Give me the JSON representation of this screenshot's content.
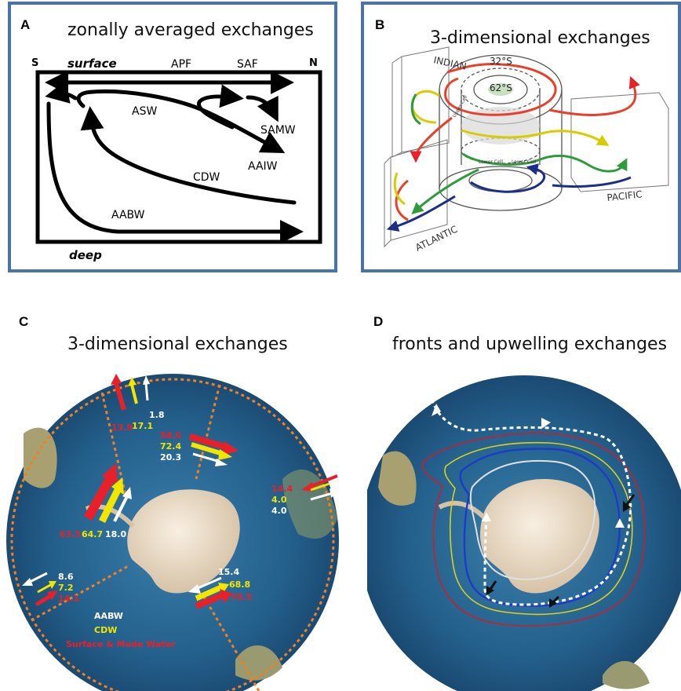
{
  "panel_a": {
    "label": "A",
    "title": "zonally averaged exchanges",
    "south": "S",
    "north": "N",
    "surface": "surface",
    "deep": "deep",
    "apf": "APF",
    "saf": "SAF",
    "asw": "ASW",
    "samw": "SAMW",
    "aaiw": "AAIW",
    "cdw": "CDW",
    "aabw": "AABW"
  },
  "panel_b": {
    "label": "B",
    "title": "3-dimensional exchanges",
    "indian": "INDIAN",
    "pacific": "PACIFIC",
    "atlantic": "ATLANTIC",
    "lat32": "32°S",
    "lat62": "62°S",
    "upper_cell": "Upper Cell",
    "lower_cell": "Lower Cell"
  },
  "panel_c": {
    "label": "C",
    "title": "3-dimensional exchanges",
    "values": {
      "top_red": "13.9",
      "top_yellow": "17.1",
      "top_white": "1.8",
      "ne_red": "58.0",
      "ne_yellow": "72.4",
      "ne_white": "20.3",
      "e_red": "14.4",
      "e_yellow": "4.0",
      "e_white": "4.0",
      "atl_red": "63.5",
      "atl_yellow": "64.7",
      "atl_white": "18.0",
      "w_white": "8.6",
      "w_yellow": "7.2",
      "w_red": "14.1",
      "s_white": "15.4",
      "s_yellow": "68.8",
      "s_red": "78.5"
    },
    "legend": {
      "aabw": "AABW",
      "cdw": "CDW",
      "surface": "Surface & Mode Water"
    }
  },
  "panel_d": {
    "label": "D",
    "title": "fronts and upwelling exchanges"
  },
  "colors": {
    "frame": "#4a74a8",
    "red": "#e8202a",
    "orange": "#f05a28",
    "yellow": "#f2e600",
    "green": "#2e9c3a",
    "navy": "#1c2f86",
    "ocean": "#2a6a96",
    "front_red": "#c8202a",
    "front_yellow": "#d8d020",
    "front_blue": "#1a3cc8",
    "front_white": "#e0e0e0"
  }
}
